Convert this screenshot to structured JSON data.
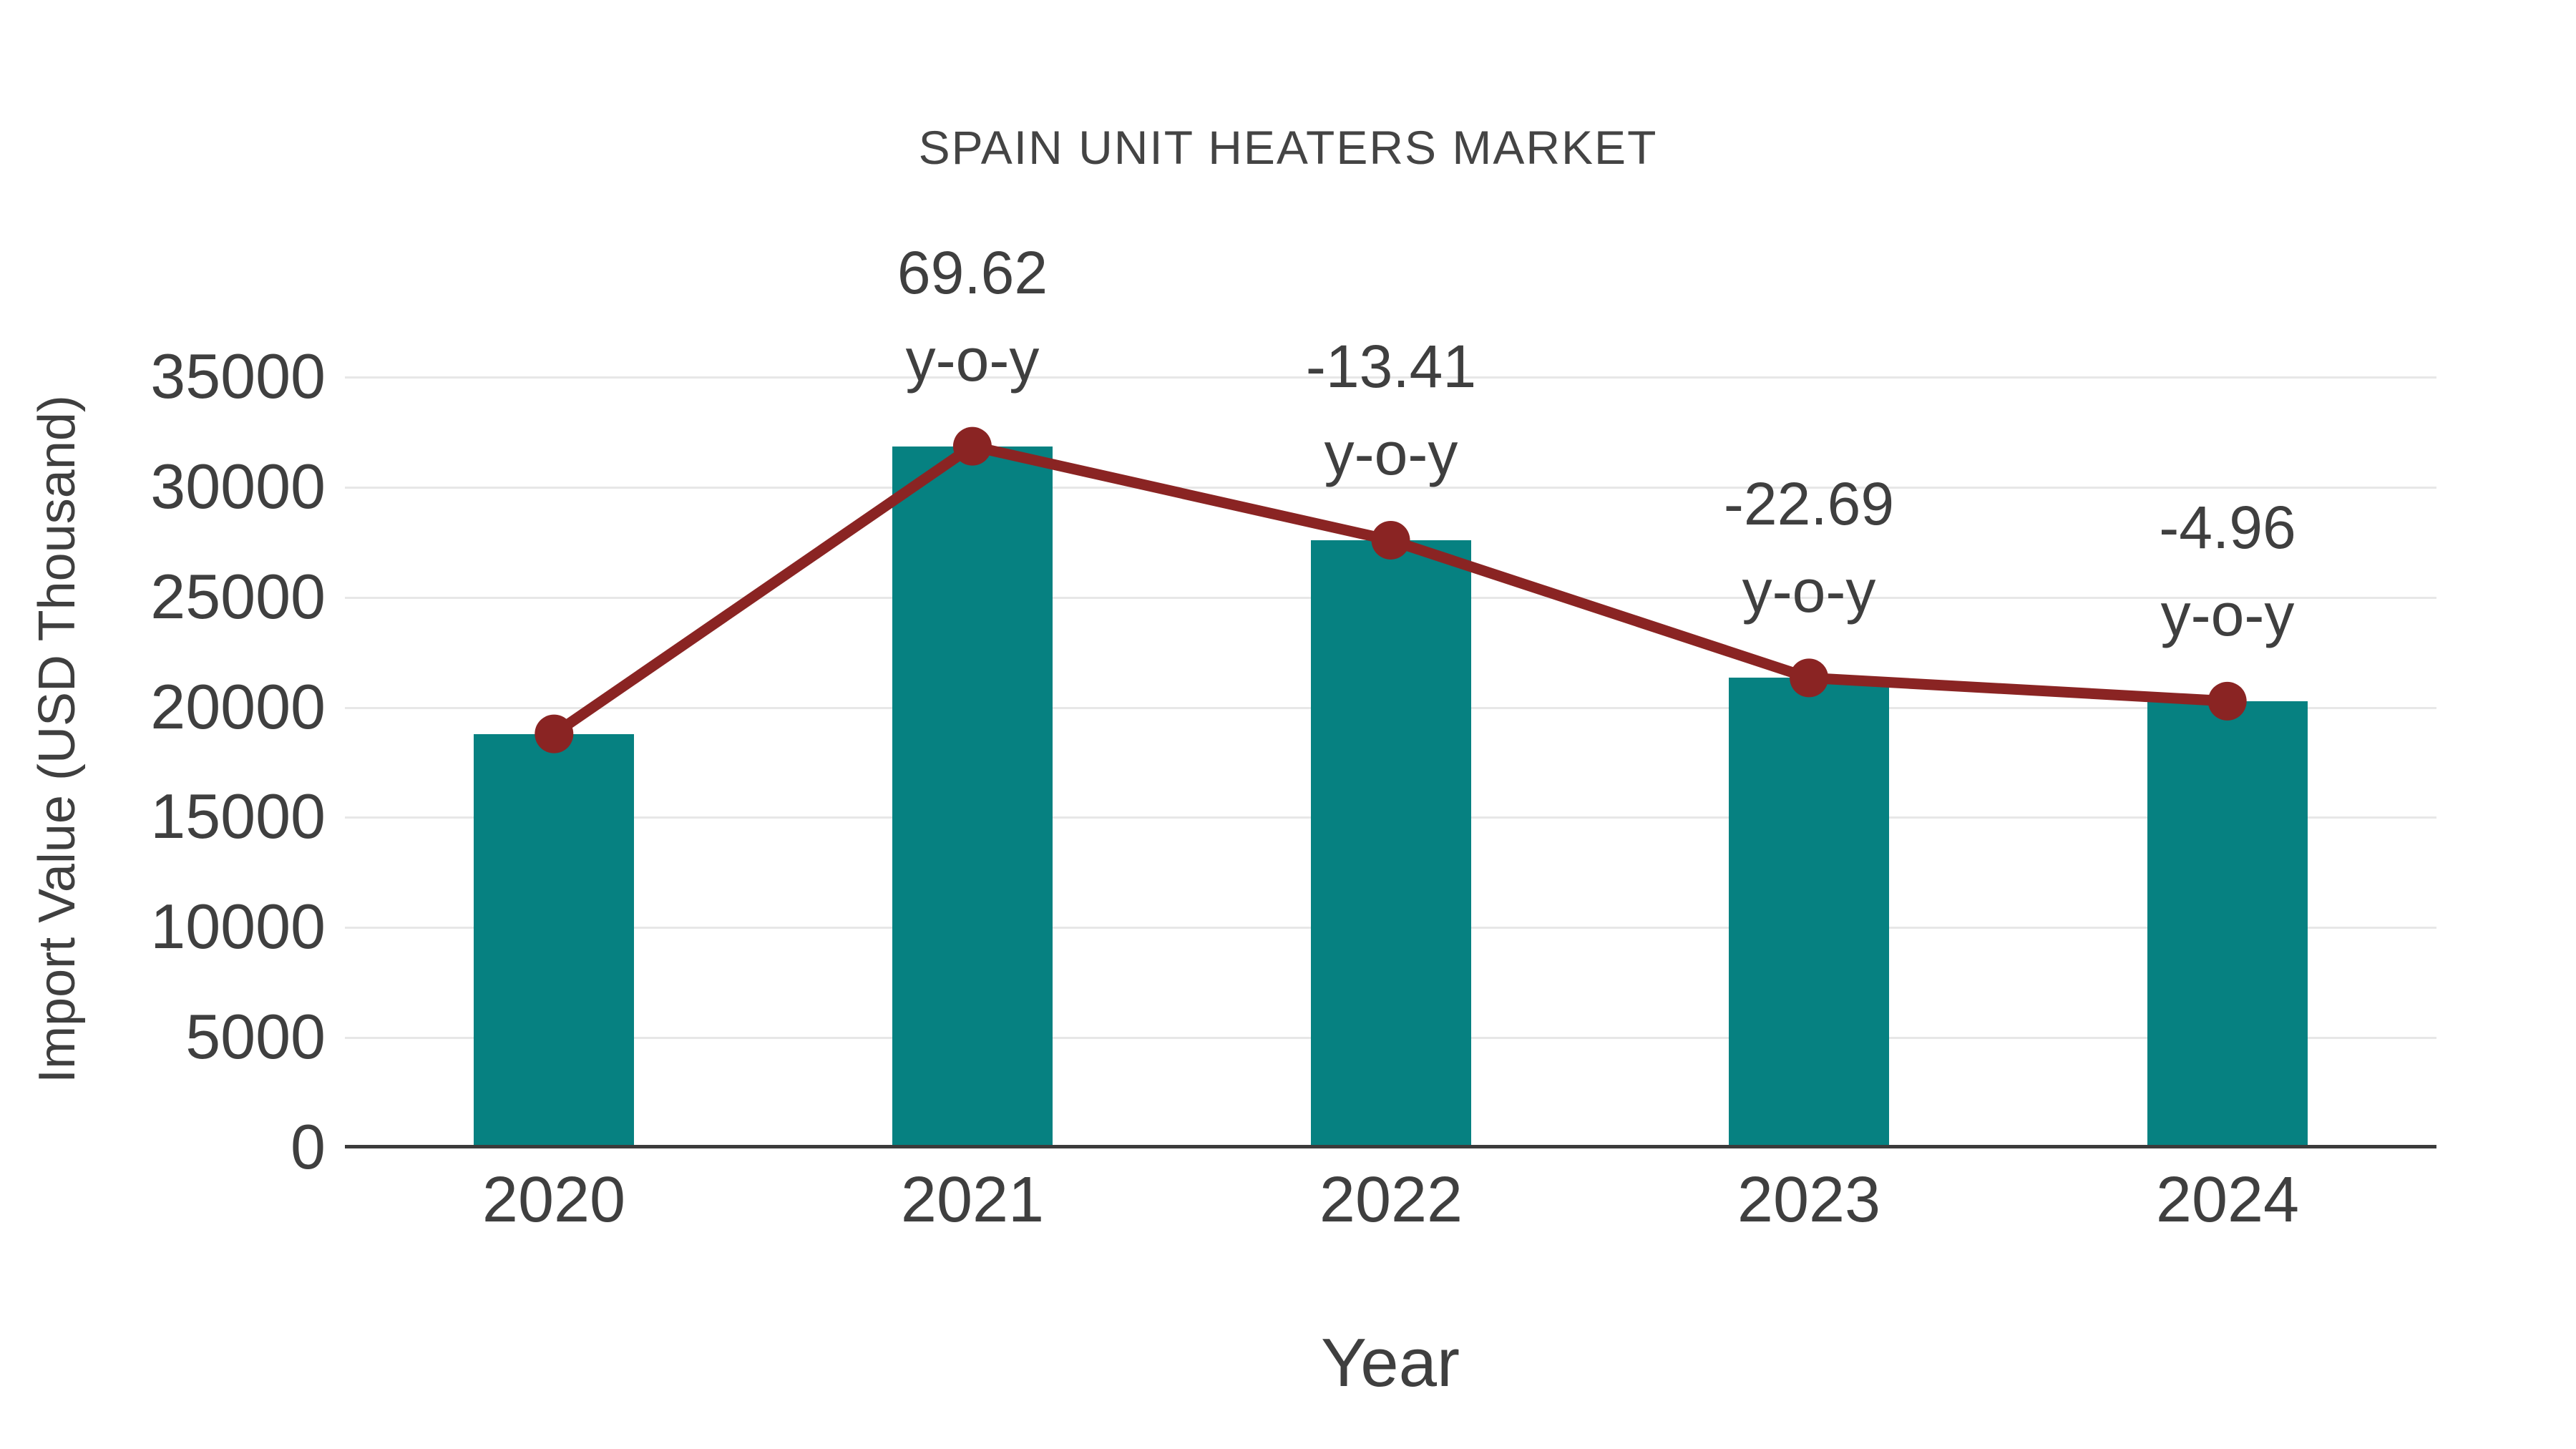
{
  "chart_data": {
    "type": "bar",
    "combo_types": [
      "bar",
      "line"
    ],
    "title": "SPAIN UNIT HEATERS MARKET",
    "xlabel": "Year",
    "ylabel": "Import Value (USD Thousand)",
    "categories": [
      "2020",
      "2021",
      "2022",
      "2023",
      "2024"
    ],
    "series": [
      {
        "name": "Import Value bars",
        "type": "bar",
        "color": "#068181",
        "values": [
          18766,
          31831,
          27563,
          21309,
          20252
        ]
      },
      {
        "name": "Import Value trend line",
        "type": "line",
        "color": "#8a2423",
        "values": [
          18766,
          31831,
          27563,
          21309,
          20252
        ]
      }
    ],
    "annotations": [
      {
        "category": "2021",
        "value": "69.62",
        "unit_label": "y-o-y"
      },
      {
        "category": "2022",
        "value": "-13.41",
        "unit_label": "y-o-y"
      },
      {
        "category": "2023",
        "value": "-22.69",
        "unit_label": "y-o-y"
      },
      {
        "category": "2024",
        "value": "-4.96",
        "unit_label": "y-o-y"
      }
    ],
    "yticks": [
      0,
      5000,
      10000,
      15000,
      20000,
      25000,
      30000,
      35000
    ],
    "ylim": [
      0,
      37800
    ],
    "grid": "horizontal-only",
    "legend_position": "none",
    "colors": {
      "bar": "#068181",
      "line": "#8a2423",
      "marker": "#8a2423",
      "text": "#3f3f3f",
      "gridline": "#e7e7e7",
      "axis_line": "#3b3b3b",
      "background": "#ffffff"
    }
  }
}
